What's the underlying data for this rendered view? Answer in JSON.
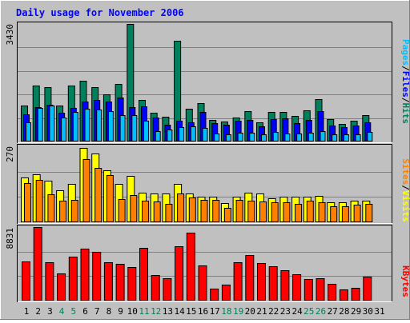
{
  "title": "Daily usage for November 2006",
  "colors": {
    "background": "#c0c0c0",
    "title": "#0000ff",
    "hits": "#00805c",
    "files": "#0000ff",
    "pages": "#00c0ff",
    "visits": "#ffff00",
    "sites": "#ff8000",
    "kbytes": "#ff0000",
    "weekend_label": "#00805c",
    "weekday_label": "#000000"
  },
  "chart_data": [
    {
      "type": "bar",
      "panel": "hits-files-pages",
      "ymax_label": "3430",
      "ylim": [
        0,
        3430
      ],
      "legend": {
        "pages": "Pages",
        "files": "Files",
        "hits": "Hits",
        "sep1": "/",
        "sep2": "/"
      },
      "categories": [
        "1",
        "2",
        "3",
        "4",
        "5",
        "6",
        "7",
        "8",
        "9",
        "10",
        "11",
        "12",
        "13",
        "14",
        "15",
        "16",
        "17",
        "18",
        "19",
        "20",
        "21",
        "22",
        "23",
        "24",
        "25",
        "26",
        "27",
        "28",
        "29",
        "30",
        "31"
      ],
      "series": [
        {
          "name": "Hits",
          "values": [
            1040,
            1640,
            1580,
            1040,
            1640,
            1780,
            1580,
            1380,
            1680,
            3430,
            1220,
            840,
            720,
            2930,
            960,
            1120,
            620,
            580,
            700,
            880,
            560,
            860,
            860,
            740,
            920,
            1240,
            660,
            520,
            600,
            780,
            0
          ]
        },
        {
          "name": "Files",
          "values": [
            800,
            1000,
            1080,
            840,
            980,
            1170,
            1220,
            1170,
            1280,
            1000,
            1020,
            690,
            480,
            600,
            560,
            860,
            540,
            480,
            600,
            620,
            440,
            660,
            680,
            540,
            620,
            880,
            460,
            420,
            470,
            560,
            0
          ]
        },
        {
          "name": "Pages",
          "values": [
            560,
            980,
            1040,
            700,
            860,
            960,
            940,
            880,
            760,
            760,
            600,
            300,
            360,
            420,
            440,
            400,
            240,
            220,
            260,
            260,
            200,
            280,
            240,
            240,
            260,
            300,
            200,
            200,
            220,
            280,
            0
          ]
        }
      ]
    },
    {
      "type": "bar",
      "panel": "visits-sites",
      "ymax_label": "270",
      "ylim": [
        0,
        270
      ],
      "legend": {
        "sites": "Sites",
        "visits": "Visits",
        "sep": "/"
      },
      "categories": [
        "1",
        "2",
        "3",
        "4",
        "5",
        "6",
        "7",
        "8",
        "9",
        "10",
        "11",
        "12",
        "13",
        "14",
        "15",
        "16",
        "17",
        "18",
        "19",
        "20",
        "21",
        "22",
        "23",
        "24",
        "25",
        "26",
        "27",
        "28",
        "29",
        "30",
        "31"
      ],
      "series": [
        {
          "name": "Visits",
          "values": [
            158,
            170,
            148,
            113,
            135,
            265,
            244,
            185,
            136,
            165,
            104,
            103,
            103,
            136,
            101,
            91,
            91,
            68,
            91,
            106,
            103,
            85,
            90,
            91,
            90,
            93,
            71,
            70,
            78,
            78,
            0
          ]
        },
        {
          "name": "Sites",
          "values": [
            140,
            150,
            100,
            77,
            79,
            225,
            194,
            167,
            81,
            98,
            77,
            74,
            66,
            102,
            89,
            79,
            79,
            51,
            79,
            77,
            73,
            72,
            70,
            64,
            77,
            70,
            56,
            57,
            62,
            65,
            0
          ]
        }
      ]
    },
    {
      "type": "bar",
      "panel": "kbytes",
      "ymax_label": "8831",
      "ylim": [
        0,
        8831
      ],
      "legend": {
        "kbytes": "KBytes"
      },
      "categories": [
        "1",
        "2",
        "3",
        "4",
        "5",
        "6",
        "7",
        "8",
        "9",
        "10",
        "11",
        "12",
        "13",
        "14",
        "15",
        "16",
        "17",
        "18",
        "19",
        "20",
        "21",
        "22",
        "23",
        "24",
        "25",
        "26",
        "27",
        "28",
        "29",
        "30",
        "31"
      ],
      "series": [
        {
          "name": "KBytes",
          "values": [
            4720,
            8831,
            4580,
            3260,
            5300,
            6240,
            5880,
            4640,
            4440,
            4020,
            6360,
            3080,
            2700,
            6500,
            8160,
            4260,
            1470,
            1920,
            4600,
            5480,
            4520,
            4080,
            3660,
            3180,
            2610,
            2670,
            2040,
            1380,
            1520,
            2920,
            0
          ]
        }
      ]
    }
  ],
  "weekend_days": [
    "4",
    "5",
    "11",
    "12",
    "18",
    "19",
    "25",
    "26"
  ]
}
